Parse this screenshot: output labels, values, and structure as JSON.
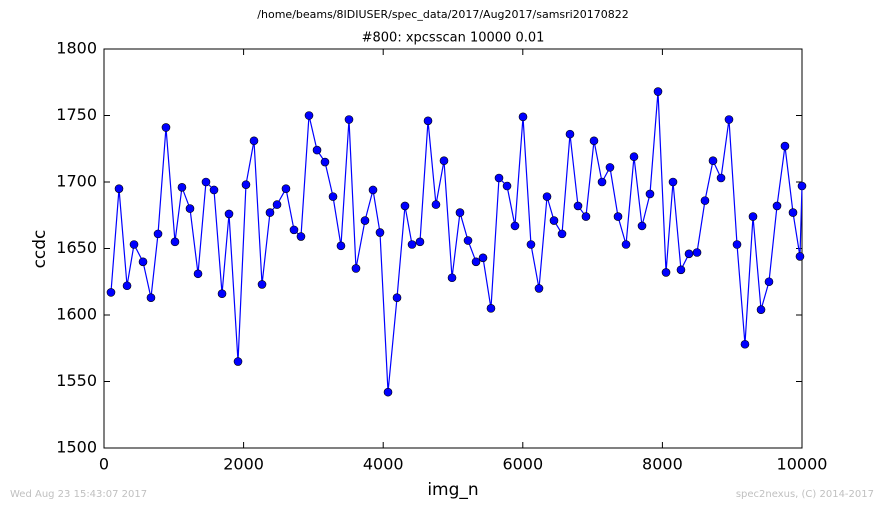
{
  "chart_data": {
    "type": "line",
    "suptitle": "/home/beams/8IDIUSER/spec_data/2017/Aug2017/samsri20170822",
    "title": "#800: xpcsscan 10000 0.01",
    "xlabel": "img_n",
    "ylabel": "ccdc",
    "footer_left": "Wed Aug 23 15:43:07 2017",
    "footer_right": "spec2nexus, (C) 2014-2017",
    "x": [
      100,
      215,
      330,
      430,
      559,
      673,
      774,
      888,
      1017,
      1117,
      1232,
      1347,
      1461,
      1576,
      1691,
      1791,
      1920,
      2034,
      2149,
      2264,
      2378,
      2479,
      2607,
      2722,
      2822,
      2937,
      3052,
      3166,
      3281,
      3395,
      3510,
      3610,
      3739,
      3854,
      3954,
      4069,
      4198,
      4312,
      4413,
      4527,
      4642,
      4756,
      4871,
      4986,
      5100,
      5215,
      5330,
      5430,
      5544,
      5659,
      5774,
      5888,
      6003,
      6117,
      6232,
      6347,
      6447,
      6562,
      6676,
      6791,
      6905,
      7020,
      7135,
      7249,
      7364,
      7479,
      7593,
      7708,
      7822,
      7937,
      8052,
      8152,
      8266,
      8381,
      8496,
      8610,
      8725,
      8840,
      8954,
      9069,
      9183,
      9298,
      9413,
      9527,
      9642,
      9756,
      9871,
      9971,
      10000
    ],
    "series": [
      {
        "name": "ccdc",
        "color": "#0000ff",
        "values": [
          1617,
          1695,
          1622,
          1653,
          1640,
          1613,
          1661,
          1741,
          1655,
          1696,
          1680,
          1631,
          1700,
          1694,
          1616,
          1676,
          1565,
          1698,
          1731,
          1623,
          1677,
          1683,
          1695,
          1664,
          1659,
          1750,
          1724,
          1715,
          1689,
          1652,
          1747,
          1635,
          1671,
          1694,
          1662,
          1542,
          1613,
          1682,
          1653,
          1655,
          1746,
          1683,
          1716,
          1628,
          1677,
          1656,
          1640,
          1643,
          1605,
          1703,
          1697,
          1667,
          1749,
          1653,
          1620,
          1689,
          1671,
          1661,
          1736,
          1682,
          1674,
          1731,
          1700,
          1711,
          1674,
          1653,
          1719,
          1667,
          1691,
          1768,
          1632,
          1700,
          1634,
          1646,
          1647,
          1686,
          1716,
          1703,
          1747,
          1653,
          1578,
          1674,
          1604,
          1625,
          1682,
          1727,
          1677,
          1644,
          1697
        ]
      }
    ],
    "xlim": [
      0,
      10000
    ],
    "xticks": [
      0,
      2000,
      4000,
      6000,
      8000,
      10000
    ],
    "ylim": [
      1500,
      1800
    ],
    "yticks": [
      1500,
      1550,
      1600,
      1650,
      1700,
      1750,
      1800
    ]
  }
}
